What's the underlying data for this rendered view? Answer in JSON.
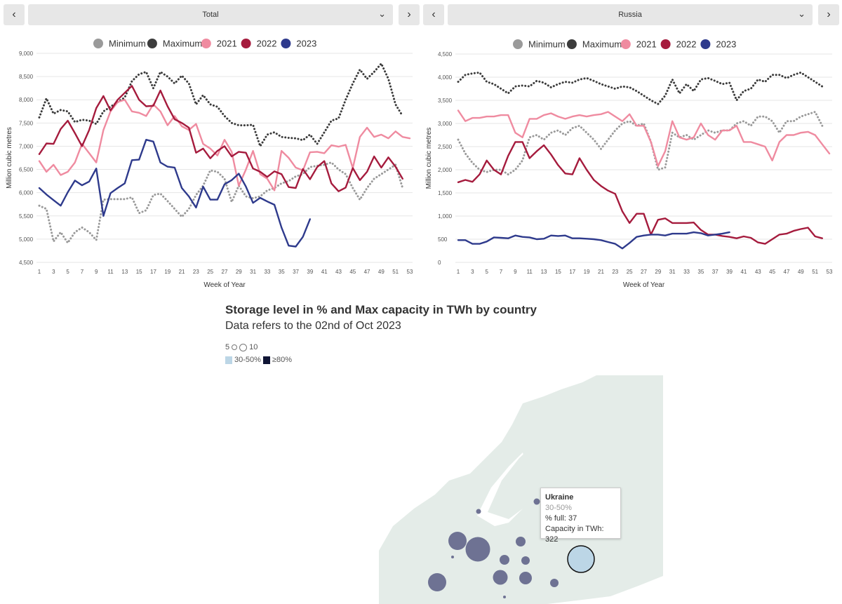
{
  "left_panel": {
    "prev_label": "‹",
    "next_label": "›",
    "selected": "Total"
  },
  "right_panel": {
    "prev_label": "‹",
    "next_label": "›",
    "selected": "Russia"
  },
  "legend": [
    "Minimum",
    "Maximum",
    "2021",
    "2022",
    "2023"
  ],
  "colors": {
    "Minimum": "#9a9a9a",
    "Maximum": "#3c3c3c",
    "2021": "#ef8ba0",
    "2022": "#a51b3d",
    "2023": "#2e3a8c",
    "map_land": "#e4ece8",
    "bubble": "#6e7293",
    "bubble_selected": "#bcd6e6"
  },
  "chart_data": [
    {
      "type": "line",
      "title": "Total",
      "xlabel": "Week of Year",
      "ylabel": "Million cubic metres",
      "ylim": [
        4500,
        9000
      ],
      "xlim": [
        1,
        53
      ],
      "x_ticks": [
        1,
        3,
        5,
        7,
        9,
        11,
        13,
        15,
        17,
        19,
        21,
        23,
        25,
        27,
        29,
        31,
        33,
        35,
        37,
        39,
        41,
        43,
        45,
        47,
        49,
        51,
        53
      ],
      "y_ticks": [
        4500,
        5000,
        5500,
        6000,
        6500,
        7000,
        7500,
        8000,
        8500,
        9000
      ],
      "y_tick_labels": [
        "4,500",
        "5,000",
        "5,500",
        "6,000",
        "6,500",
        "7,000",
        "7,500",
        "8,000",
        "8,500",
        "9,000"
      ],
      "series": [
        {
          "name": "Minimum",
          "style": "dotted",
          "values": [
            5720,
            5650,
            4950,
            5150,
            4920,
            5150,
            5250,
            5150,
            4980,
            5850,
            5860,
            5860,
            5860,
            5900,
            5560,
            5620,
            5950,
            5980,
            5820,
            5650,
            5480,
            5650,
            5950,
            6150,
            6480,
            6450,
            6300,
            5800,
            6150,
            5920,
            5880,
            5920,
            6050,
            6100,
            6200,
            6250,
            6350,
            6400,
            6550,
            6580,
            6600,
            6650,
            6500,
            6400,
            6100,
            5850,
            6100,
            6300,
            6400,
            6500,
            6600,
            6100
          ]
        },
        {
          "name": "Maximum",
          "style": "dotted",
          "values": [
            7620,
            8030,
            7700,
            7780,
            7750,
            7520,
            7570,
            7550,
            7480,
            7750,
            7850,
            7950,
            8050,
            8400,
            8550,
            8600,
            8250,
            8600,
            8500,
            8350,
            8520,
            8350,
            7900,
            8100,
            7900,
            7850,
            7650,
            7500,
            7450,
            7450,
            7460,
            7000,
            7250,
            7300,
            7200,
            7180,
            7170,
            7130,
            7250,
            7050,
            7300,
            7550,
            7600,
            8000,
            8350,
            8650,
            8450,
            8600,
            8780,
            8450,
            7900,
            7650
          ]
        },
        {
          "name": "2021",
          "values": [
            6680,
            6450,
            6600,
            6380,
            6450,
            6650,
            7050,
            6850,
            6650,
            7350,
            7750,
            7950,
            8000,
            7750,
            7720,
            7650,
            7900,
            7750,
            7450,
            7650,
            7430,
            7350,
            7480,
            7050,
            6950,
            6800,
            7140,
            6880,
            6150,
            6500,
            6900,
            6400,
            6300,
            6050,
            6900,
            6750,
            6540,
            6480,
            6870,
            6880,
            6850,
            7020,
            6990,
            7030,
            6530,
            7200,
            7400,
            7200,
            7250,
            7170,
            7320,
            7200,
            7170
          ]
        },
        {
          "name": "2022",
          "values": [
            6830,
            7060,
            7050,
            7370,
            7550,
            7280,
            7000,
            7350,
            7820,
            8080,
            7770,
            8000,
            8150,
            8300,
            8000,
            7860,
            7870,
            8200,
            7860,
            7580,
            7500,
            7400,
            6860,
            6950,
            6740,
            6900,
            7000,
            6780,
            6880,
            6860,
            6520,
            6450,
            6340,
            6460,
            6400,
            6120,
            6100,
            6510,
            6290,
            6550,
            6680,
            6200,
            6030,
            6110,
            6530,
            6270,
            6450,
            6780,
            6540,
            6760,
            6560,
            6300
          ]
        },
        {
          "name": "2023",
          "values": [
            6100,
            5960,
            5840,
            5720,
            6010,
            6260,
            6160,
            6240,
            6520,
            5500,
            5990,
            6100,
            6200,
            6700,
            6710,
            7140,
            7100,
            6650,
            6560,
            6540,
            6100,
            5920,
            5680,
            6130,
            5850,
            5850,
            6180,
            6270,
            6410,
            6130,
            5780,
            5890,
            5810,
            5740,
            5250,
            4860,
            4840,
            5050,
            5430
          ]
        }
      ]
    },
    {
      "type": "line",
      "title": "Russia",
      "xlabel": "Week of Year",
      "ylabel": "Million cubic metres",
      "ylim": [
        0,
        4500
      ],
      "xlim": [
        1,
        53
      ],
      "x_ticks": [
        1,
        3,
        5,
        7,
        9,
        11,
        13,
        15,
        17,
        19,
        21,
        23,
        25,
        27,
        29,
        31,
        33,
        35,
        37,
        39,
        41,
        43,
        45,
        47,
        49,
        51,
        53
      ],
      "y_ticks": [
        0,
        500,
        1000,
        1500,
        2000,
        2500,
        3000,
        3500,
        4000,
        4500
      ],
      "y_tick_labels": [
        "0",
        "500",
        "1,000",
        "1,500",
        "2,000",
        "2,500",
        "3,000",
        "3,500",
        "4,000",
        "4,500"
      ],
      "series": [
        {
          "name": "Minimum",
          "style": "dotted",
          "values": [
            2650,
            2350,
            2150,
            2000,
            1950,
            2000,
            2000,
            1900,
            2000,
            2200,
            2700,
            2750,
            2650,
            2800,
            2850,
            2750,
            2900,
            2950,
            2800,
            2650,
            2450,
            2650,
            2850,
            3000,
            3050,
            2950,
            3000,
            2600,
            2000,
            2050,
            2800,
            2700,
            2750,
            2650,
            2750,
            2850,
            2800,
            2850,
            2850,
            3000,
            3050,
            2950,
            3150,
            3150,
            3050,
            2800,
            3050,
            3050,
            3150,
            3200,
            3250,
            2950
          ]
        },
        {
          "name": "Maximum",
          "style": "dotted",
          "values": [
            3900,
            4050,
            4080,
            4100,
            3900,
            3850,
            3750,
            3650,
            3800,
            3820,
            3800,
            3920,
            3880,
            3780,
            3850,
            3900,
            3880,
            3950,
            3980,
            3920,
            3850,
            3800,
            3750,
            3800,
            3780,
            3700,
            3600,
            3500,
            3420,
            3600,
            3950,
            3650,
            3850,
            3700,
            3950,
            3980,
            3920,
            3850,
            3880,
            3500,
            3700,
            3750,
            3950,
            3900,
            4050,
            4050,
            3980,
            4050,
            4100,
            4000,
            3900,
            3800
          ]
        },
        {
          "name": "2021",
          "values": [
            3280,
            3050,
            3120,
            3120,
            3150,
            3150,
            3180,
            3180,
            2800,
            2700,
            3100,
            3100,
            3180,
            3220,
            3150,
            3100,
            3150,
            3180,
            3150,
            3180,
            3200,
            3250,
            3150,
            3050,
            3200,
            2950,
            2950,
            2600,
            2080,
            2400,
            3050,
            2700,
            2650,
            2700,
            3000,
            2750,
            2650,
            2850,
            2850,
            2950,
            2600,
            2600,
            2550,
            2500,
            2200,
            2600,
            2750,
            2750,
            2800,
            2820,
            2750,
            2550,
            2350
          ]
        },
        {
          "name": "2022",
          "values": [
            1730,
            1780,
            1740,
            1900,
            2200,
            2000,
            1900,
            2300,
            2600,
            2600,
            2250,
            2400,
            2530,
            2330,
            2100,
            1920,
            1900,
            2250,
            2000,
            1780,
            1650,
            1550,
            1480,
            1100,
            850,
            1050,
            1050,
            600,
            920,
            950,
            850,
            850,
            850,
            860,
            700,
            600,
            600,
            570,
            550,
            520,
            560,
            530,
            430,
            400,
            500,
            600,
            620,
            680,
            720,
            750,
            560,
            520
          ]
        },
        {
          "name": "2023",
          "values": [
            480,
            480,
            400,
            400,
            450,
            540,
            530,
            520,
            580,
            550,
            540,
            500,
            510,
            580,
            570,
            580,
            520,
            520,
            510,
            500,
            480,
            440,
            400,
            300,
            420,
            550,
            580,
            600,
            600,
            580,
            620,
            620,
            620,
            650,
            630,
            580,
            600,
            620,
            650
          ]
        }
      ]
    }
  ],
  "map": {
    "title": "Storage level in % and Max capacity in TWh by country",
    "subtitle": "Data refers to the 02nd of Oct 2023",
    "size_legend": {
      "small": "5",
      "large": "10"
    },
    "color_legend": {
      "light": "30-50%",
      "dark": "≥80%"
    },
    "tooltip": {
      "country": "Ukraine",
      "band": "30-50%",
      "full_line": "% full: 37",
      "capacity_line": "Capacity in TWh: 322"
    }
  }
}
